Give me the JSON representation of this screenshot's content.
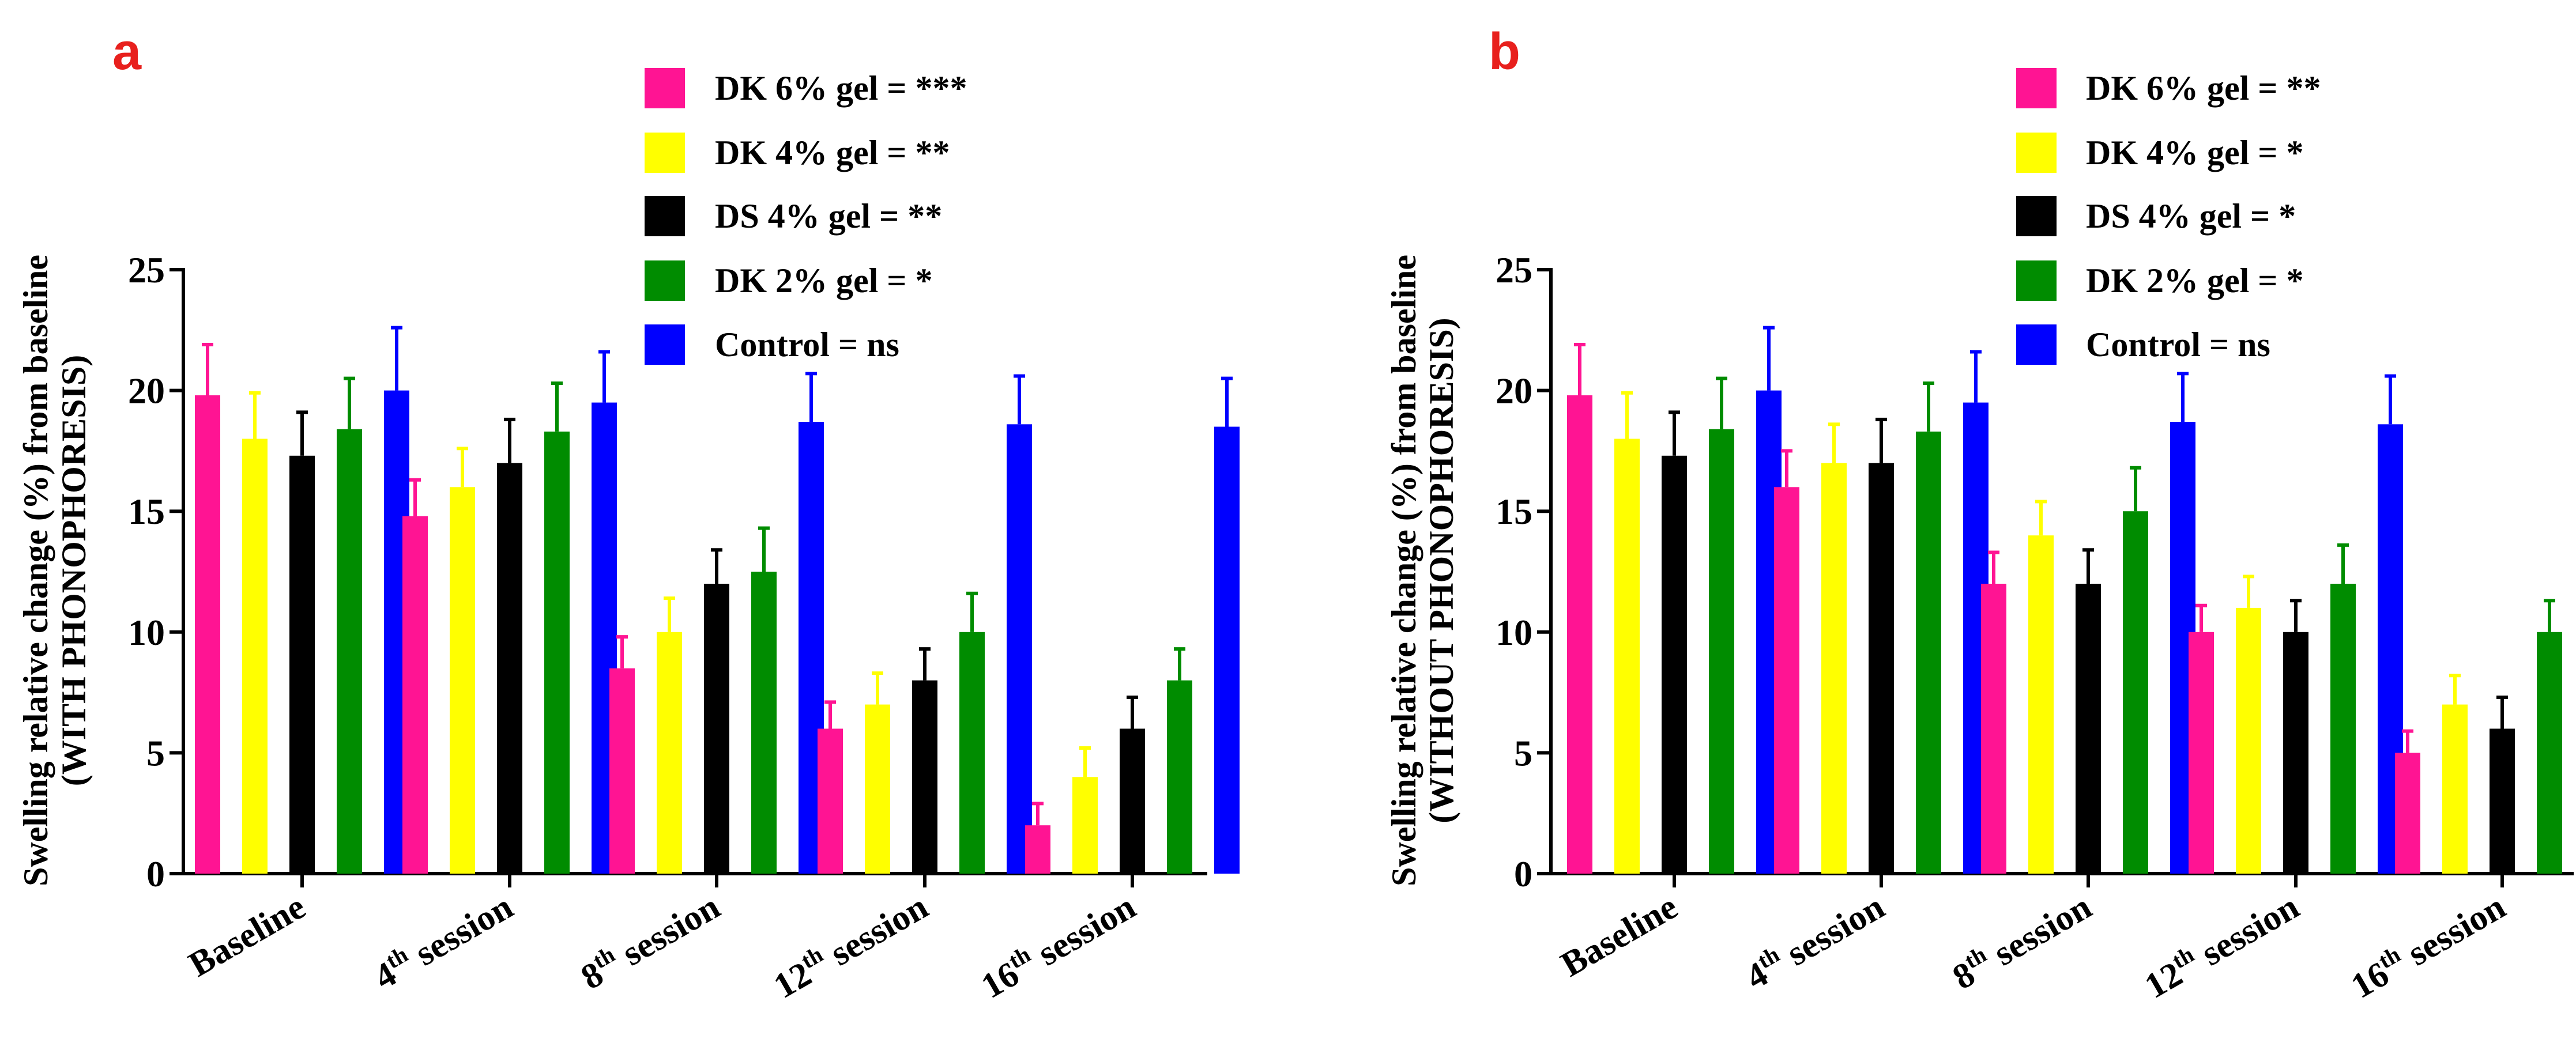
{
  "colors": {
    "panel_label": "#e8201d",
    "axis": "#000000"
  },
  "chart_data": [
    {
      "type": "bar",
      "panel_label": "a",
      "ylabel": [
        "Swelling relative change (%) from baseline",
        "(WITH PHONOPHORESIS)"
      ],
      "ylim": [
        0,
        25
      ],
      "yticks": [
        0,
        5,
        10,
        15,
        20,
        25
      ],
      "categories": [
        {
          "base": "Baseline",
          "sup": "",
          "rest": ""
        },
        {
          "base": "4",
          "sup": "th",
          "rest": " session"
        },
        {
          "base": "8",
          "sup": "th",
          "rest": " session"
        },
        {
          "base": "12",
          "sup": "th",
          "rest": " session"
        },
        {
          "base": "16",
          "sup": "th",
          "rest": " session"
        }
      ],
      "grid": false,
      "legend_position": "top",
      "series": [
        {
          "name": "DK 6% gel = ***",
          "color": "#ff1493",
          "values": [
            19.8,
            14.8,
            8.5,
            6.0,
            2.0
          ],
          "errors": [
            2.1,
            1.5,
            1.3,
            1.1,
            0.9
          ]
        },
        {
          "name": "DK 4% gel = **",
          "color": "#ffff00",
          "values": [
            18.0,
            16.0,
            10.0,
            7.0,
            4.0
          ],
          "errors": [
            1.9,
            1.6,
            1.4,
            1.3,
            1.2
          ]
        },
        {
          "name": "DS 4% gel = **",
          "color": "#000000",
          "values": [
            17.3,
            17.0,
            12.0,
            8.0,
            6.0
          ],
          "errors": [
            1.8,
            1.8,
            1.4,
            1.3,
            1.3
          ]
        },
        {
          "name": "DK 2% gel = *",
          "color": "#008c00",
          "values": [
            18.4,
            18.3,
            12.5,
            10.0,
            8.0
          ],
          "errors": [
            2.1,
            2.0,
            1.8,
            1.6,
            1.3
          ]
        },
        {
          "name": "Control = ns",
          "color": "#0000ff",
          "values": [
            20.0,
            19.5,
            18.7,
            18.6,
            18.5
          ],
          "errors": [
            2.6,
            2.1,
            2.0,
            2.0,
            2.0
          ]
        }
      ]
    },
    {
      "type": "bar",
      "panel_label": "b",
      "ylabel": [
        "Swelling relative change (%) from baseline",
        "(WITHOUT PHONOPHORESIS)"
      ],
      "ylim": [
        0,
        25
      ],
      "yticks": [
        0,
        5,
        10,
        15,
        20,
        25
      ],
      "categories": [
        {
          "base": "Baseline",
          "sup": "",
          "rest": ""
        },
        {
          "base": "4",
          "sup": "th",
          "rest": " session"
        },
        {
          "base": "8",
          "sup": "th",
          "rest": " session"
        },
        {
          "base": "12",
          "sup": "th",
          "rest": " session"
        },
        {
          "base": "16",
          "sup": "th",
          "rest": " session"
        }
      ],
      "grid": false,
      "legend_position": "top",
      "series": [
        {
          "name": "DK 6% gel = **",
          "color": "#ff1493",
          "values": [
            19.8,
            16.0,
            12.0,
            10.0,
            5.0
          ],
          "errors": [
            2.1,
            1.5,
            1.3,
            1.1,
            0.9
          ]
        },
        {
          "name": "DK 4% gel = *",
          "color": "#ffff00",
          "values": [
            18.0,
            17.0,
            14.0,
            11.0,
            7.0
          ],
          "errors": [
            1.9,
            1.6,
            1.4,
            1.3,
            1.2
          ]
        },
        {
          "name": "DS 4% gel = *",
          "color": "#000000",
          "values": [
            17.3,
            17.0,
            12.0,
            10.0,
            6.0
          ],
          "errors": [
            1.8,
            1.8,
            1.4,
            1.3,
            1.3
          ]
        },
        {
          "name": "DK 2% gel = *",
          "color": "#008c00",
          "values": [
            18.4,
            18.3,
            15.0,
            12.0,
            10.0
          ],
          "errors": [
            2.1,
            2.0,
            1.8,
            1.6,
            1.3
          ]
        },
        {
          "name": "Control = ns",
          "color": "#0000ff",
          "values": [
            20.0,
            19.5,
            18.7,
            18.6,
            18.5
          ],
          "errors": [
            2.6,
            2.1,
            2.0,
            2.0,
            2.0
          ]
        }
      ]
    }
  ]
}
